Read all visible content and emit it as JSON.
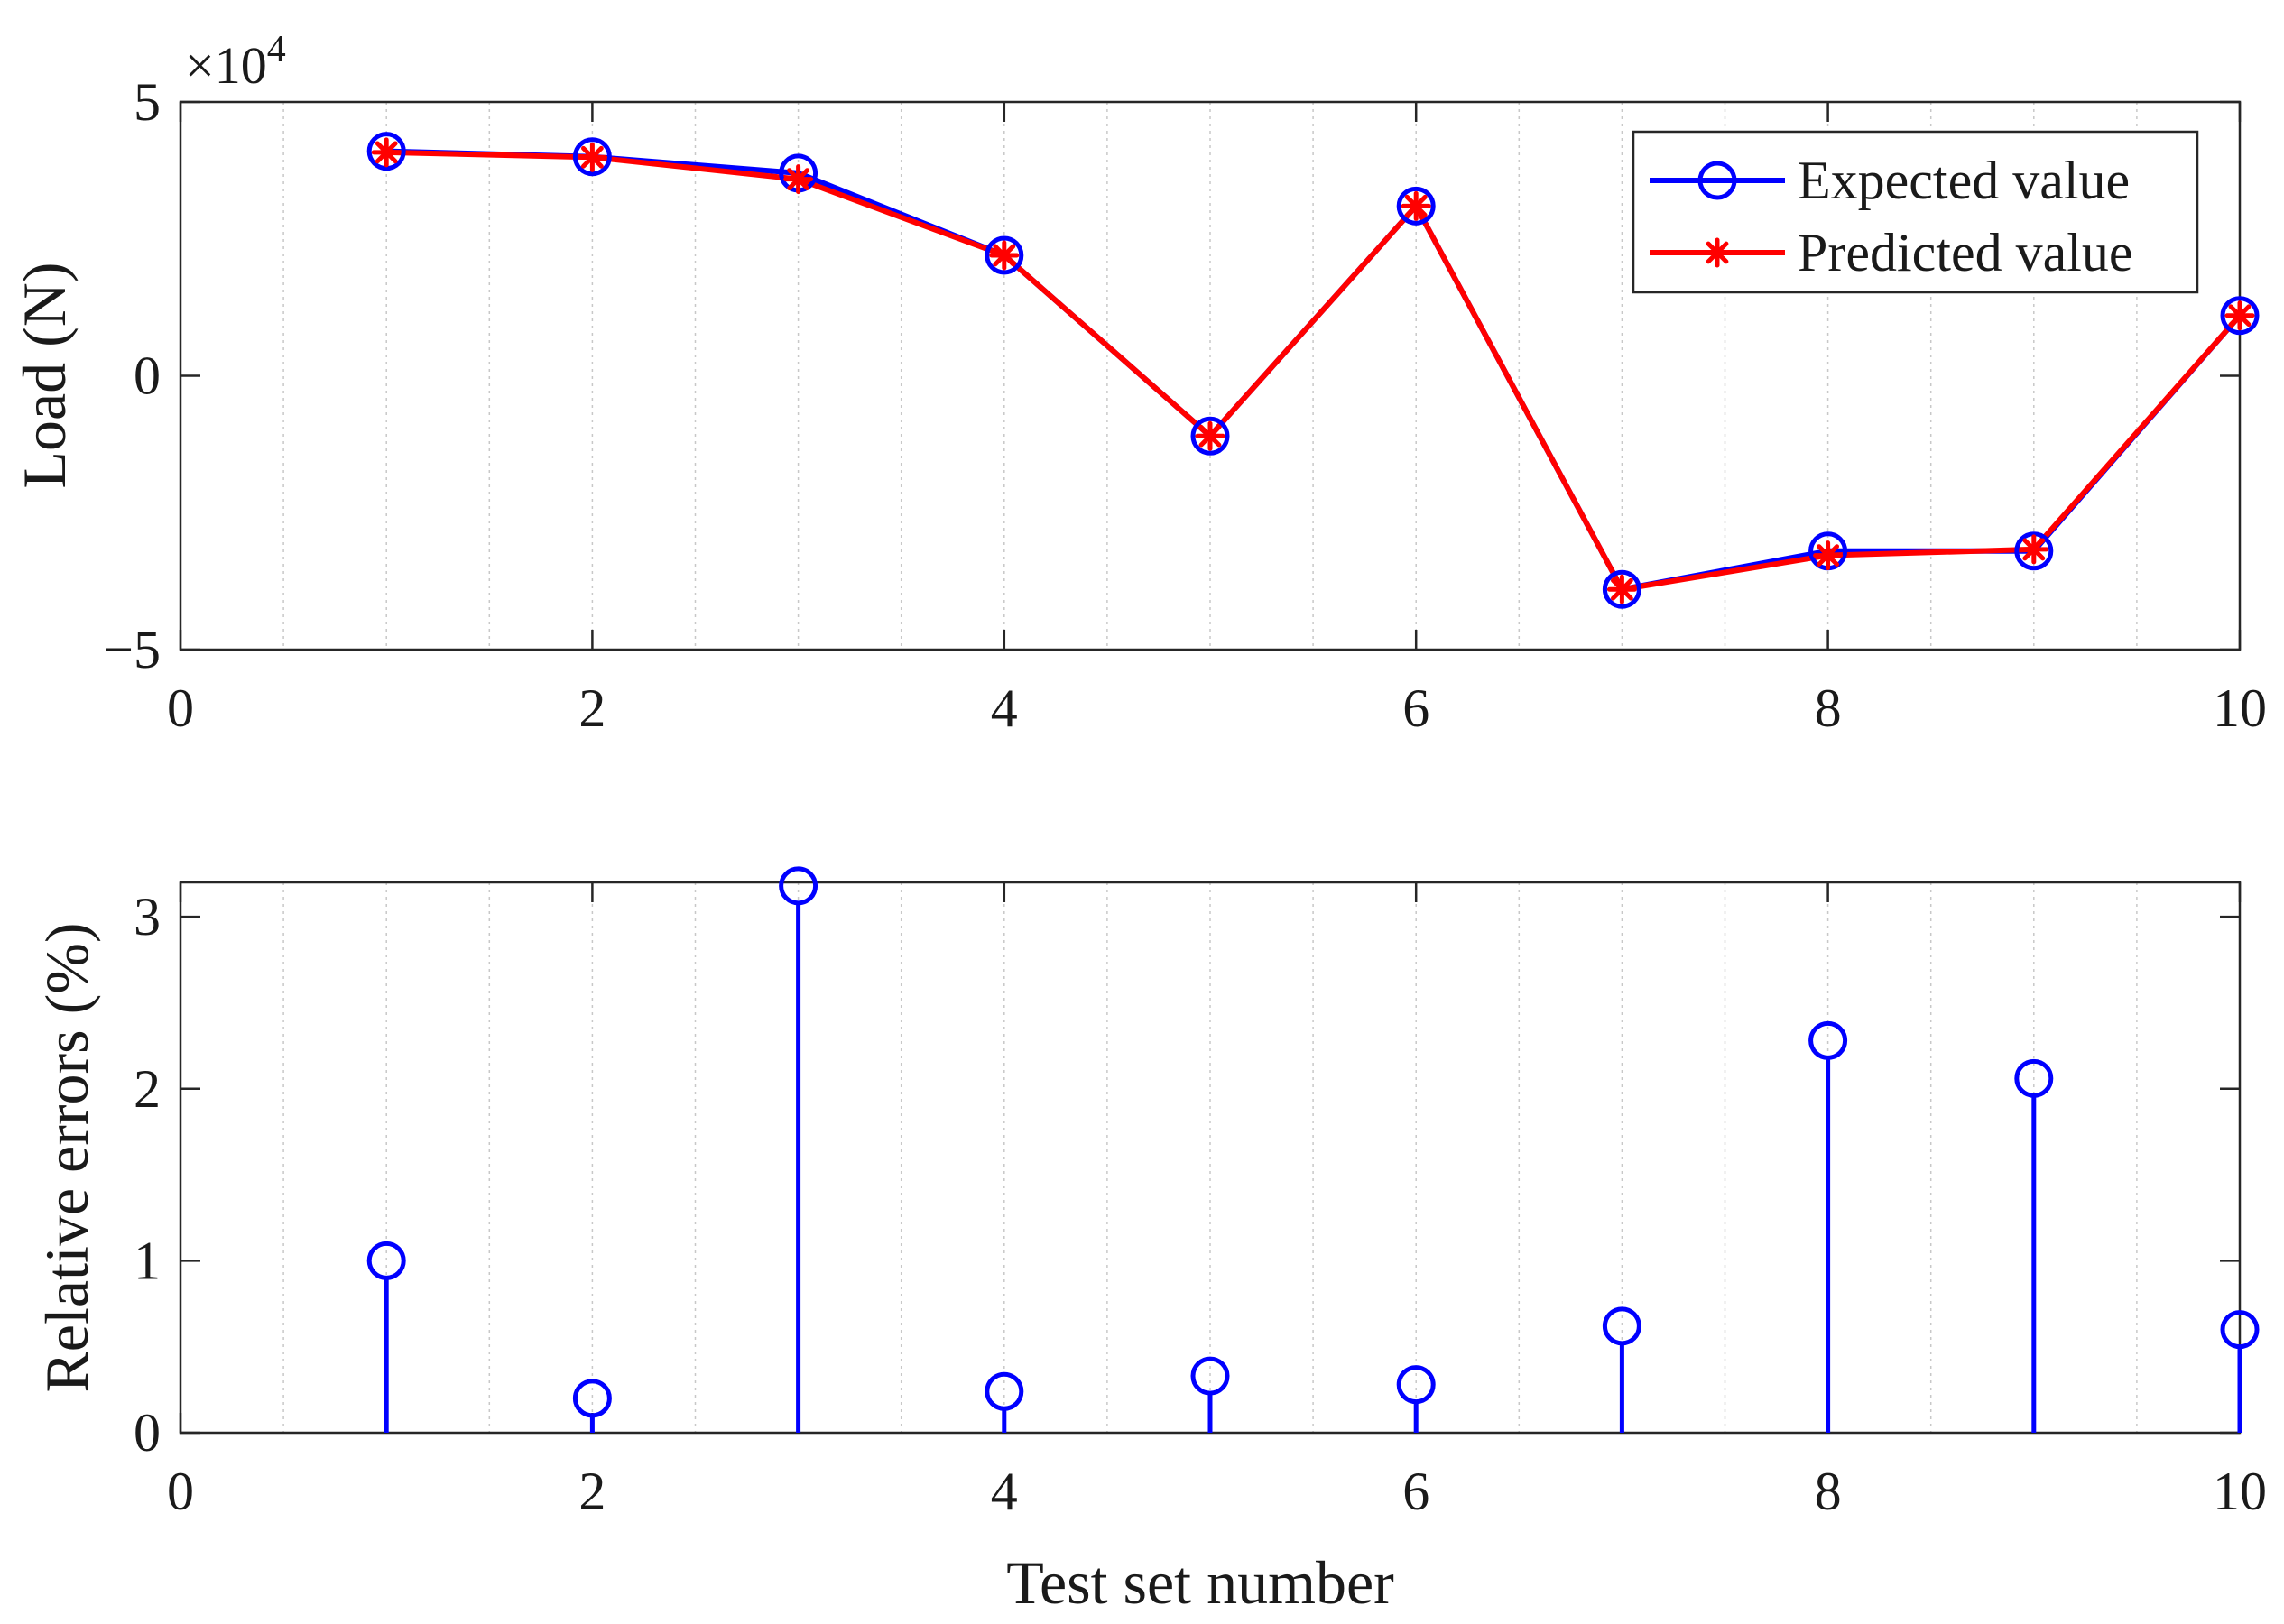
{
  "chart_data": [
    {
      "type": "line",
      "xlabel": "",
      "ylabel": "Load (N)",
      "y_exponent_label": "×10",
      "y_exponent_power": "4",
      "xlim": [
        0,
        10
      ],
      "ylim": [
        -50000,
        50000
      ],
      "x_ticks": [
        "0",
        "2",
        "4",
        "6",
        "8",
        "10"
      ],
      "y_ticks": [
        "5",
        "0",
        "−5"
      ],
      "grid": "x-minor-dotted",
      "legend_position": "top-right",
      "x": [
        1,
        2,
        3,
        4,
        5,
        6,
        7,
        8,
        9,
        10
      ],
      "series": [
        {
          "name": "Expected value",
          "color": "#0000ff",
          "marker": "circle",
          "values": [
            41000,
            40000,
            37000,
            22000,
            -11000,
            31000,
            -39000,
            -32000,
            -32000,
            11000
          ]
        },
        {
          "name": "Predicted value",
          "color": "#ff0000",
          "marker": "asterisk",
          "values": [
            40800,
            39900,
            35900,
            22000,
            -11000,
            31000,
            -39000,
            -32800,
            -31700,
            11000
          ]
        }
      ]
    },
    {
      "type": "stem",
      "xlabel": "Test set number",
      "ylabel": "Relative errors (%)",
      "xlim": [
        0,
        10
      ],
      "ylim": [
        0,
        3.2
      ],
      "x_ticks": [
        "0",
        "2",
        "4",
        "6",
        "8",
        "10"
      ],
      "y_ticks": [
        "3",
        "2",
        "1",
        "0"
      ],
      "grid": "x-minor-dotted",
      "color": "#0000ff",
      "x": [
        1,
        2,
        3,
        4,
        5,
        6,
        7,
        8,
        9,
        10
      ],
      "values": [
        1.0,
        0.2,
        3.18,
        0.24,
        0.33,
        0.28,
        0.62,
        2.28,
        2.06,
        0.6
      ]
    }
  ]
}
